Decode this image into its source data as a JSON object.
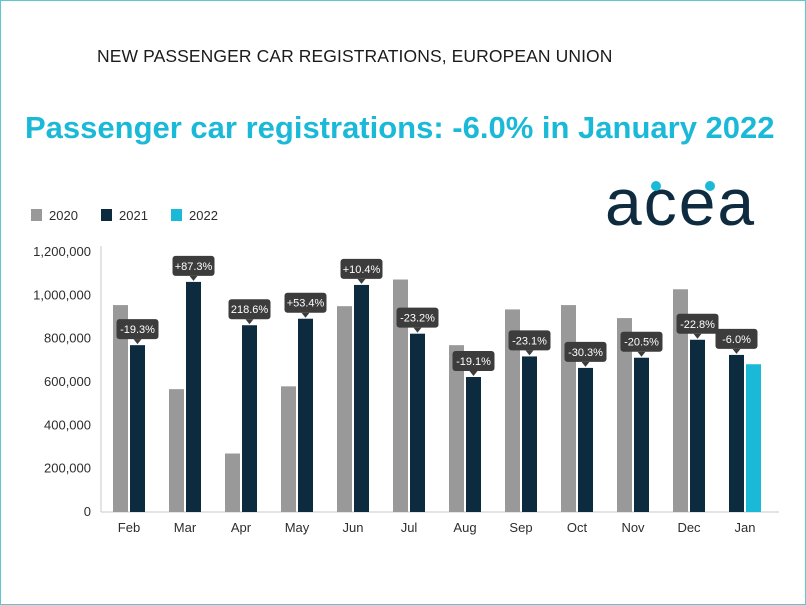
{
  "header": {
    "title": "NEW PASSENGER CAR REGISTRATIONS, EUROPEAN UNION"
  },
  "main_title": "Passenger car registrations: -6.0% in January 2022",
  "logo": {
    "text": "acea",
    "color": "#0e2b40",
    "dot_color": "#1bb9d8"
  },
  "chart_data": {
    "type": "bar",
    "categories": [
      "Feb",
      "Mar",
      "Apr",
      "May",
      "Jun",
      "Jul",
      "Aug",
      "Sep",
      "Oct",
      "Nov",
      "Dec",
      "Jan"
    ],
    "series": [
      {
        "name": "2020",
        "color": "#999999",
        "values": [
          955000,
          567000,
          270000,
          580000,
          950000,
          1073000,
          770000,
          935000,
          955000,
          895000,
          1028000,
          null
        ]
      },
      {
        "name": "2021",
        "color": "#0d2b3e",
        "values": [
          770000,
          1062000,
          862000,
          892000,
          1048000,
          823000,
          623000,
          718000,
          665000,
          712000,
          795000,
          725000
        ]
      },
      {
        "name": "2022",
        "color": "#1bb9d8",
        "values": [
          null,
          null,
          null,
          null,
          null,
          null,
          null,
          null,
          null,
          null,
          null,
          682000
        ]
      }
    ],
    "labels": [
      "-19.3%",
      "+87.3%",
      "218.6%",
      "+53.4%",
      "+10.4%",
      "-23.2%",
      "-19.1%",
      "-23.1%",
      "-30.3%",
      "-20.5%",
      "-22.8%",
      "-6.0%"
    ],
    "label_color": "#3c3c3c",
    "ylim": [
      0,
      1200000
    ],
    "yticks": [
      "0",
      "200,000",
      "400,000",
      "600,000",
      "800,000",
      "1,000,000",
      "1,200,000"
    ],
    "grid": false,
    "legend": "top-left"
  }
}
